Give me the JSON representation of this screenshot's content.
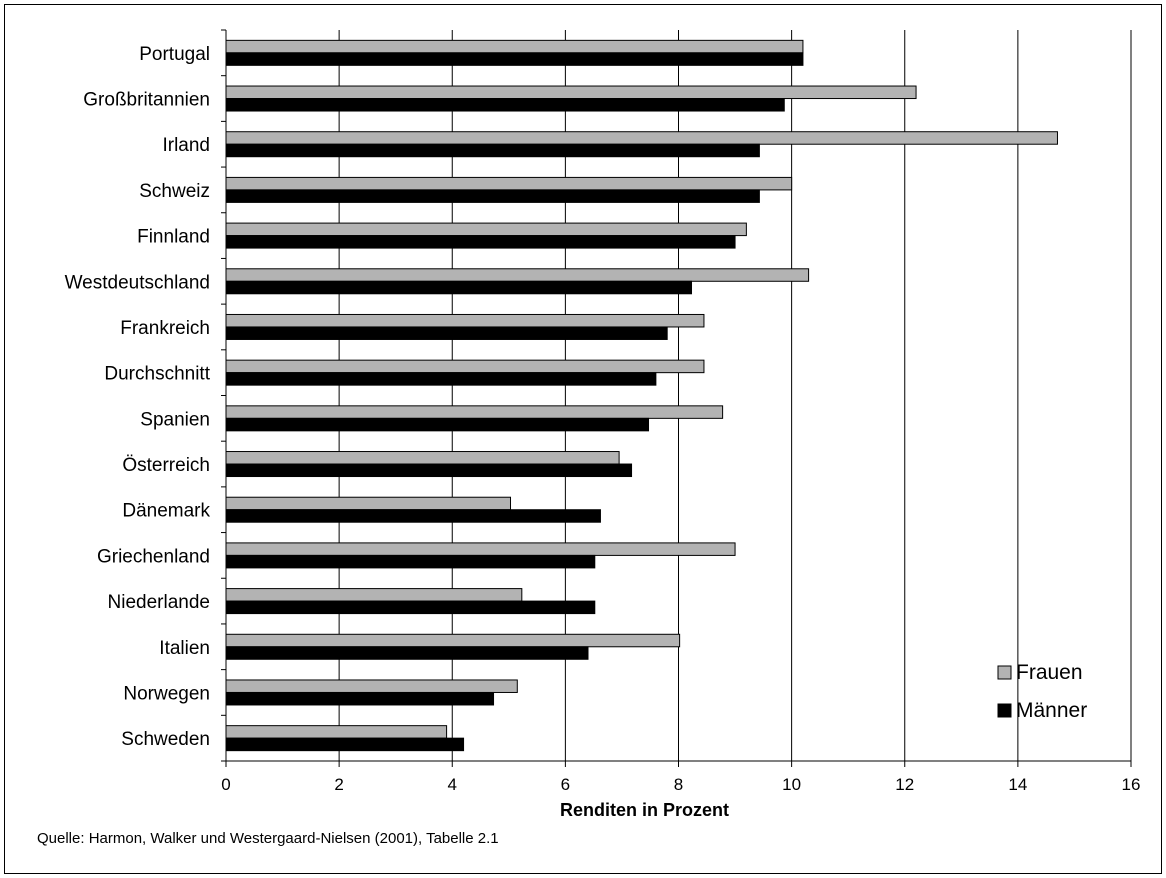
{
  "chart_data": {
    "type": "bar",
    "orientation": "horizontal",
    "categories": [
      "Portugal",
      "Großbritannien",
      "Irland",
      "Schweiz",
      "Finnland",
      "Westdeutschland",
      "Frankreich",
      "Durchschnitt",
      "Spanien",
      "Österreich",
      "Dänemark",
      "Griechenland",
      "Niederlande",
      "Italien",
      "Norwegen",
      "Schweden"
    ],
    "series": [
      {
        "name": "Frauen",
        "color": "#b3b3b3",
        "values": [
          10.2,
          12.2,
          14.7,
          10.0,
          9.2,
          10.3,
          8.45,
          8.45,
          8.78,
          6.95,
          5.03,
          9.0,
          5.23,
          8.02,
          5.15,
          3.9
        ]
      },
      {
        "name": "Männer",
        "color": "#000000",
        "values": [
          10.2,
          9.87,
          9.43,
          9.43,
          9.0,
          8.23,
          7.8,
          7.6,
          7.47,
          7.17,
          6.62,
          6.52,
          6.52,
          6.4,
          4.73,
          4.2
        ]
      }
    ],
    "xlabel": "Renditen in Prozent",
    "ylabel": "",
    "xlim": [
      0,
      16
    ],
    "xticks": [
      "0",
      "2",
      "4",
      "6",
      "8",
      "10",
      "12",
      "14",
      "16"
    ],
    "grid": "vertical",
    "legend_position": "bottom-right"
  },
  "source_note": "Quelle: Harmon, Walker und Westergaard-Nielsen (2001), Tabelle 2.1"
}
